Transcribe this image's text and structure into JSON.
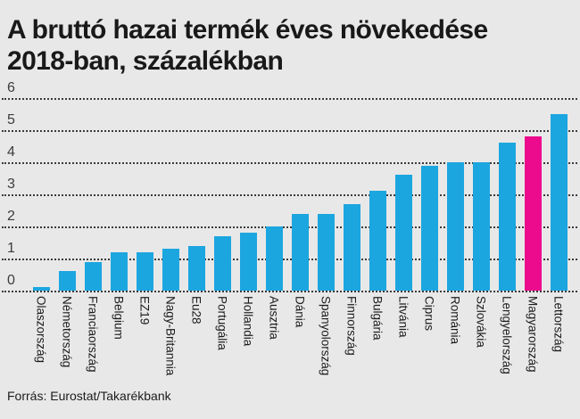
{
  "header": {
    "title_line1": "A bruttó hazai termék éves növekedése",
    "title_line2": "2018-ban, százalékban"
  },
  "footer": {
    "source": "Forrás: Eurostat/Takarékbank"
  },
  "chart_data": {
    "type": "bar",
    "title": "A bruttó hazai termék éves növekedése 2018-ban, százalékban",
    "categories": [
      "Olaszország",
      "Németország",
      "Franciaország",
      "Belgium",
      "EZ19",
      "Nagy-Britannia",
      "Eu28",
      "Portugália",
      "Hollandia",
      "Ausztria",
      "Dánia",
      "Spanyolország",
      "Finnország",
      "Bulgária",
      "Litvánia",
      "Ciprus",
      "Románia",
      "Szlovákia",
      "Lengyelország",
      "Magyarország",
      "Lettország"
    ],
    "values": [
      0.1,
      0.6,
      0.9,
      1.2,
      1.2,
      1.3,
      1.4,
      1.7,
      1.8,
      2.0,
      2.4,
      2.4,
      2.7,
      3.1,
      3.6,
      3.9,
      4.0,
      4.0,
      4.6,
      4.8,
      5.5
    ],
    "highlight_category": "Magyarország",
    "highlight_index": 19,
    "bar_color": "#1ca6e0",
    "highlight_color": "#ec0b8c",
    "xlabel": "",
    "ylabel": "",
    "ylim": [
      0,
      6
    ],
    "yticks": [
      0,
      1,
      2,
      3,
      4,
      5,
      6
    ],
    "grid": "horizontal-dotted",
    "legend": "none",
    "source": "Forrás: Eurostat/Takarékbank"
  }
}
